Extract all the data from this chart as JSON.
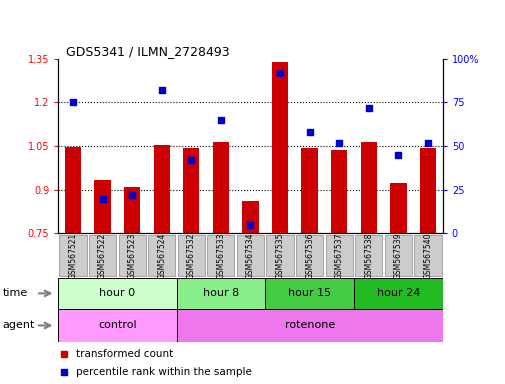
{
  "title": "GDS5341 / ILMN_2728493",
  "samples": [
    "GSM567521",
    "GSM567522",
    "GSM567523",
    "GSM567524",
    "GSM567532",
    "GSM567533",
    "GSM567534",
    "GSM567535",
    "GSM567536",
    "GSM567537",
    "GSM567538",
    "GSM567539",
    "GSM567540"
  ],
  "transformed_count": [
    1.048,
    0.935,
    0.91,
    1.053,
    1.044,
    1.065,
    0.863,
    1.338,
    1.044,
    1.038,
    1.063,
    0.925,
    1.043
  ],
  "percentile_rank": [
    75,
    20,
    22,
    82,
    42,
    65,
    5,
    92,
    58,
    52,
    72,
    45,
    52
  ],
  "ylim_left": [
    0.75,
    1.35
  ],
  "ylim_right": [
    0,
    100
  ],
  "yticks_left": [
    0.75,
    0.9,
    1.05,
    1.2,
    1.35
  ],
  "yticks_right": [
    0,
    25,
    50,
    75,
    100
  ],
  "bar_color": "#cc0000",
  "dot_color": "#0000cc",
  "bar_width": 0.55,
  "groups": [
    {
      "label": "hour 0",
      "start": 0,
      "end": 4,
      "color": "#ccffcc"
    },
    {
      "label": "hour 8",
      "start": 4,
      "end": 7,
      "color": "#88ee88"
    },
    {
      "label": "hour 15",
      "start": 7,
      "end": 10,
      "color": "#44cc44"
    },
    {
      "label": "hour 24",
      "start": 10,
      "end": 13,
      "color": "#22bb22"
    }
  ],
  "agents": [
    {
      "label": "control",
      "start": 0,
      "end": 4,
      "color": "#ff99ff"
    },
    {
      "label": "rotenone",
      "start": 4,
      "end": 13,
      "color": "#ee77ee"
    }
  ],
  "legend_items": [
    {
      "color": "#cc0000",
      "label": "transformed count"
    },
    {
      "color": "#0000cc",
      "label": "percentile rank within the sample"
    }
  ],
  "sample_bg_color": "#cccccc",
  "sample_border_color": "#999999",
  "grid_color": "black",
  "grid_linestyle": "dotted",
  "grid_linewidth": 0.8,
  "grid_yticks": [
    0.9,
    1.05,
    1.2
  ],
  "title_fontsize": 9,
  "tick_fontsize": 7,
  "sample_fontsize": 5.5,
  "row_label_fontsize": 8,
  "group_label_fontsize": 8,
  "legend_fontsize": 7.5
}
